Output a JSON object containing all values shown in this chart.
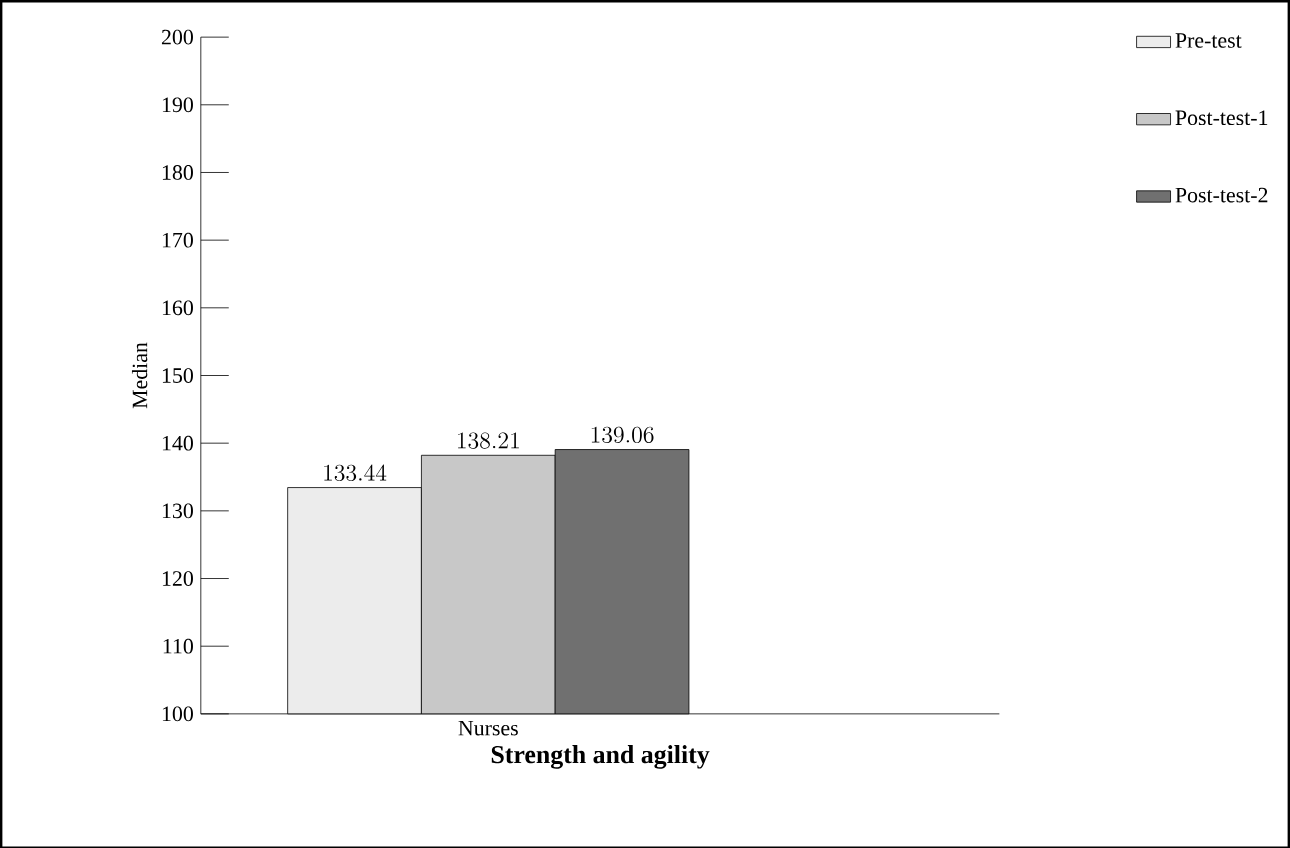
{
  "chart_data": {
    "type": "bar",
    "xlabel": "**Strength and agility**",
    "ylabel": "Median",
    "categories": [
      "Nurses"
    ],
    "series": [
      {
        "name": "Pre-test",
        "color": "#ececec",
        "values": [
          133.44
        ]
      },
      {
        "name": "Post-test-1",
        "color": "#c8c8c8",
        "values": [
          138.21
        ]
      },
      {
        "name": "Post-test-2",
        "color": "#707070",
        "values": [
          139.06
        ]
      }
    ],
    "ylim": [
      100,
      200
    ],
    "yticks": [
      100,
      110,
      120,
      130,
      140,
      150,
      160,
      170,
      180,
      190,
      200
    ],
    "data_labels": true,
    "legend": "top right",
    "grid": false
  }
}
